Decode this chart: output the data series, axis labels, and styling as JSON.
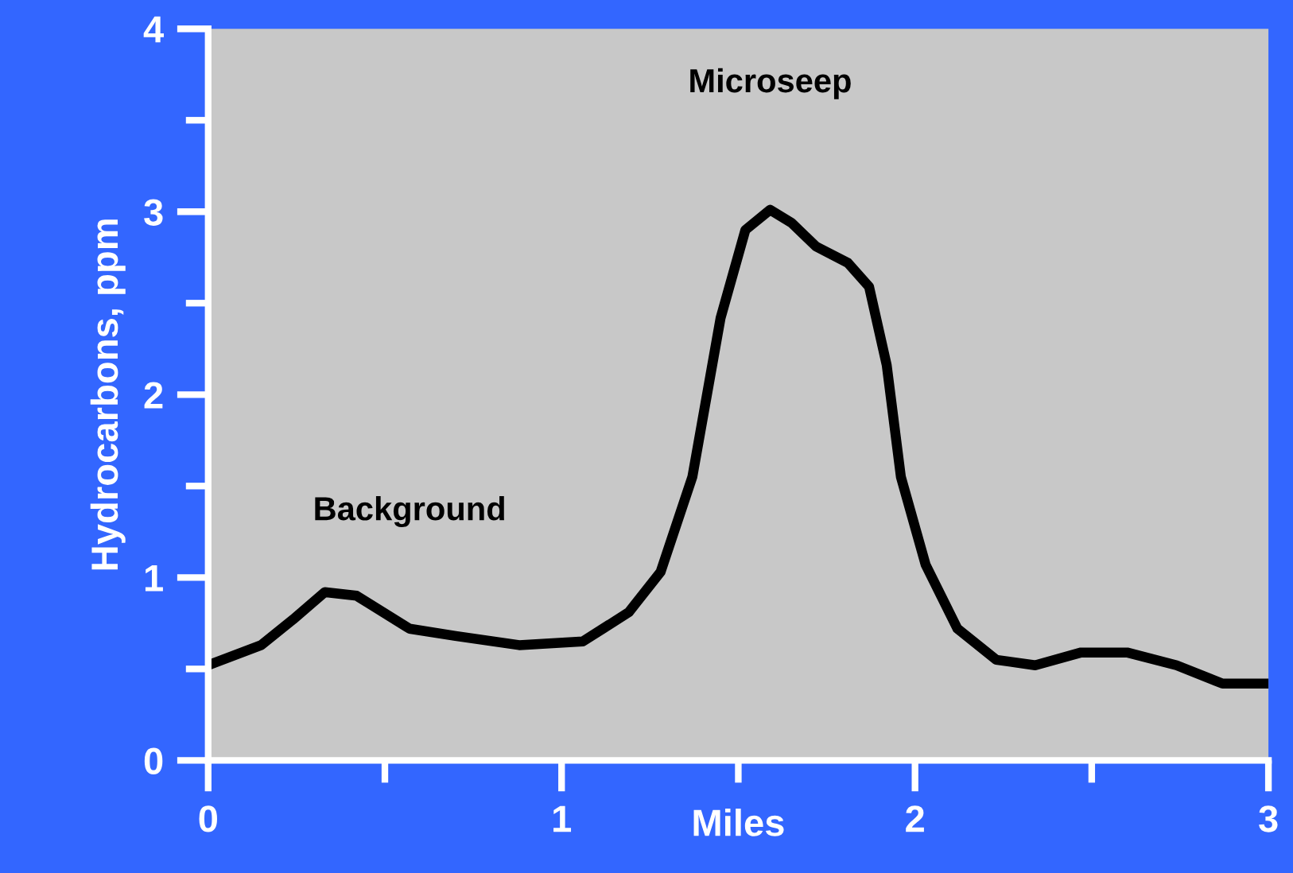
{
  "chart_data": {
    "type": "line",
    "xlabel": "Miles",
    "ylabel": "Hydrocarbons, ppm",
    "x": [
      0,
      0.15,
      0.24,
      0.33,
      0.42,
      0.57,
      0.7,
      0.88,
      1.06,
      1.19,
      1.28,
      1.37,
      1.45,
      1.52,
      1.59,
      1.65,
      1.72,
      1.81,
      1.87,
      1.92,
      1.96,
      2.03,
      2.12,
      2.23,
      2.34,
      2.47,
      2.6,
      2.74,
      2.87,
      3.0
    ],
    "series": [
      {
        "color": "#000000",
        "values": [
          0.52,
          0.63,
          0.77,
          0.92,
          0.9,
          0.72,
          0.68,
          0.63,
          0.65,
          0.81,
          1.03,
          1.55,
          2.42,
          2.9,
          3.01,
          2.94,
          2.81,
          2.72,
          2.59,
          2.16,
          1.55,
          1.07,
          0.72,
          0.55,
          0.52,
          0.59,
          0.59,
          0.52,
          0.42,
          0.42
        ]
      }
    ],
    "xlim": [
      0,
      3
    ],
    "ylim": [
      0,
      4
    ],
    "xticks": [
      0,
      {
        "value": 0.5,
        "label": null
      },
      1,
      {
        "value": 1.5,
        "label": null
      },
      2,
      {
        "value": 2.5,
        "label": null
      },
      3
    ],
    "yticks": [
      0,
      {
        "value": 0.5,
        "label": null
      },
      1,
      {
        "value": 1.5,
        "label": null
      },
      2,
      {
        "value": 2.5,
        "label": null
      },
      3,
      {
        "value": 3.5,
        "label": null
      },
      4
    ],
    "annotations": [
      "Background",
      "Microseep"
    ],
    "grid": false,
    "legend": false,
    "marker": "none",
    "line_style": "solid"
  }
}
